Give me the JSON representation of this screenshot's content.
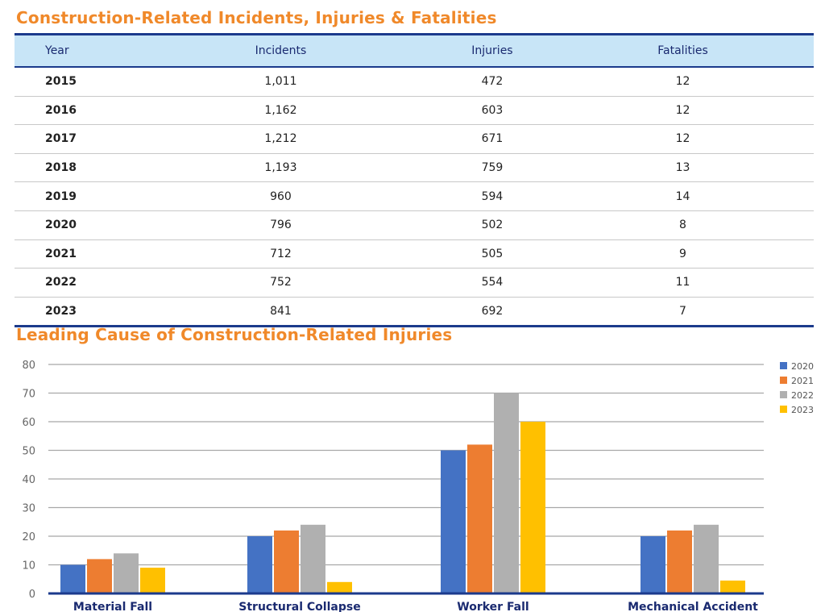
{
  "table": {
    "title": "Construction-Related Incidents, Injuries & Fatalities",
    "headers": [
      "Year",
      "Incidents",
      "Injuries",
      "Fatalities"
    ],
    "rows": [
      [
        "2015",
        "1,011",
        "472",
        "12"
      ],
      [
        "2016",
        "1,162",
        "603",
        "12"
      ],
      [
        "2017",
        "1,212",
        "671",
        "12"
      ],
      [
        "2018",
        "1,193",
        "759",
        "13"
      ],
      [
        "2019",
        "960",
        "594",
        "14"
      ],
      [
        "2020",
        "796",
        "502",
        "8"
      ],
      [
        "2021",
        "712",
        "505",
        "9"
      ],
      [
        "2022",
        "752",
        "554",
        "11"
      ],
      [
        "2023",
        "841",
        "692",
        "7"
      ]
    ]
  },
  "chart_data": {
    "type": "bar",
    "title": "Leading Cause of Construction-Related Injuries",
    "categories": [
      "Material Fall",
      "Structural Collapse",
      "Worker Fall",
      "Mechanical Accident"
    ],
    "series": [
      {
        "name": "2020",
        "color": "#4472c4",
        "values": [
          10,
          20,
          50,
          20
        ]
      },
      {
        "name": "2021",
        "color": "#ed7d31",
        "values": [
          12,
          22,
          52,
          22
        ]
      },
      {
        "name": "2022",
        "color": "#b0b0b0",
        "values": [
          14,
          24,
          70,
          24
        ]
      },
      {
        "name": "2023",
        "color": "#ffc000",
        "values": [
          9,
          4,
          60,
          4.5
        ]
      }
    ],
    "ylim": [
      0,
      80
    ],
    "yticks": [
      0,
      10,
      20,
      30,
      40,
      50,
      60,
      70,
      80
    ],
    "grid": true,
    "legend": "top-right",
    "xlabel": "",
    "ylabel": ""
  }
}
